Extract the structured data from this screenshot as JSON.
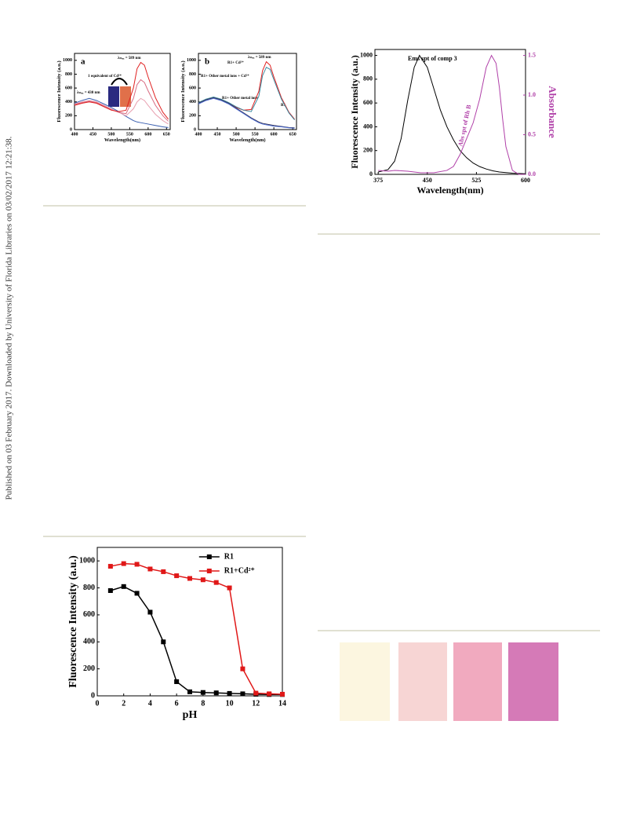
{
  "side_note": "Published on 03 February 2017. Downloaded by University of Florida Libraries on 03/02/2017 12:21:38.",
  "chart_data": [
    {
      "type": "line",
      "label": "a",
      "xlabel": "Wavelength(nm)",
      "ylabel": "Fluorescence Intensity (a.u.)",
      "annotations": [
        "λₘₐₓ = 589 nm",
        "1 equivalent of Cd²⁺",
        "λₘₐₓ = 430 nm"
      ],
      "x": [
        400,
        420,
        440,
        460,
        480,
        500,
        520,
        540,
        560,
        570,
        580,
        590,
        600,
        620,
        640,
        655
      ],
      "series": [
        {
          "color": "#3a5fb0",
          "values": [
            380,
            420,
            450,
            420,
            370,
            320,
            260,
            190,
            130,
            110,
            100,
            90,
            80,
            60,
            40,
            30
          ]
        },
        {
          "color": "#e8a0b0",
          "values": [
            370,
            400,
            420,
            400,
            350,
            300,
            250,
            200,
            300,
            400,
            450,
            420,
            350,
            220,
            130,
            80
          ]
        },
        {
          "color": "#d86a80",
          "values": [
            360,
            390,
            410,
            390,
            340,
            290,
            250,
            230,
            450,
            650,
            720,
            680,
            560,
            350,
            200,
            120
          ]
        },
        {
          "color": "#e02020",
          "values": [
            350,
            380,
            400,
            380,
            330,
            280,
            260,
            280,
            600,
            880,
            970,
            930,
            760,
            460,
            250,
            150
          ]
        }
      ],
      "xlim": [
        400,
        660
      ],
      "xticks": [
        400,
        450,
        500,
        550,
        600,
        650
      ],
      "ylim": [
        0,
        1100
      ],
      "yticks": [
        0,
        200,
        400,
        600,
        800,
        1000
      ]
    },
    {
      "type": "line",
      "label": "b",
      "xlabel": "Wavelength(nm)",
      "ylabel": "Fluorescence Intensity (a.u.)",
      "annotations": [
        "λₘₐₓ = 589 nm",
        "R1+ Cd²⁺",
        "R1+ Other metal ions + Cd²⁺",
        "R1+ Other metal ions",
        "R1"
      ],
      "x": [
        400,
        420,
        440,
        460,
        480,
        500,
        520,
        540,
        560,
        570,
        580,
        590,
        600,
        620,
        640,
        655
      ],
      "series": [
        {
          "color": "#e02020",
          "values": [
            380,
            430,
            460,
            430,
            380,
            320,
            280,
            290,
            550,
            850,
            980,
            930,
            760,
            460,
            250,
            150
          ]
        },
        {
          "color": "#3a8aa0",
          "values": [
            390,
            440,
            470,
            440,
            390,
            330,
            280,
            260,
            480,
            780,
            900,
            870,
            720,
            440,
            240,
            140
          ]
        },
        {
          "color": "#333355",
          "values": [
            380,
            430,
            460,
            430,
            380,
            310,
            240,
            170,
            110,
            90,
            80,
            70,
            60,
            45,
            30,
            25
          ]
        },
        {
          "color": "#4a6ad0",
          "values": [
            370,
            420,
            450,
            420,
            370,
            300,
            230,
            160,
            100,
            80,
            70,
            60,
            50,
            40,
            25,
            20
          ]
        }
      ],
      "xlim": [
        400,
        660
      ],
      "xticks": [
        400,
        450,
        500,
        550,
        600,
        650
      ],
      "ylim": [
        0,
        1100
      ],
      "yticks": [
        0,
        200,
        400,
        600,
        800,
        1000
      ]
    },
    {
      "type": "line",
      "xlabel": "Wavelength(nm)",
      "ylabel": "Fluorescence Intensity (a.u.)",
      "y2label": "Absorbance",
      "annotations": [
        "Ems spt of comp 3",
        "Abs spt of Rh B"
      ],
      "series": [
        {
          "color": "#000000",
          "x": [
            375,
            390,
            400,
            410,
            420,
            430,
            438,
            450,
            460,
            470,
            480,
            490,
            500,
            510,
            520,
            530,
            540,
            550,
            560,
            580,
            600
          ],
          "values": [
            20,
            40,
            110,
            300,
            620,
            900,
            1000,
            900,
            720,
            540,
            400,
            290,
            200,
            140,
            95,
            65,
            45,
            30,
            20,
            10,
            5
          ]
        },
        {
          "color": "#b040a8",
          "axis": "y2",
          "x": [
            375,
            390,
            400,
            420,
            440,
            460,
            480,
            490,
            500,
            510,
            515,
            520,
            530,
            540,
            548,
            555,
            560,
            565,
            570,
            580,
            590,
            600
          ],
          "values": [
            0.05,
            0.04,
            0.05,
            0.04,
            0.02,
            0.02,
            0.05,
            0.1,
            0.25,
            0.45,
            0.55,
            0.65,
            0.95,
            1.35,
            1.5,
            1.4,
            1.1,
            0.7,
            0.35,
            0.05,
            0.0,
            0.0
          ]
        }
      ],
      "xlim": [
        370,
        600
      ],
      "xticks": [
        375,
        450,
        525,
        600
      ],
      "ylim": [
        0,
        1050
      ],
      "yticks": [
        0,
        200,
        400,
        600,
        800,
        1000
      ],
      "y2lim": [
        0,
        1.575
      ],
      "y2ticks": [
        {
          "value": 0,
          "label": "0.0"
        },
        0.5,
        {
          "value": 1,
          "label": "1.0"
        },
        1.5
      ]
    },
    {
      "type": "line",
      "markers": true,
      "legend": "upper right",
      "xlabel": "pH",
      "ylabel": "Fluorescence Intensity (a.u.)",
      "x": [
        1,
        2,
        3,
        4,
        5,
        6,
        7,
        8,
        9,
        10,
        11,
        12,
        13,
        14
      ],
      "series": [
        {
          "name": "R1",
          "color": "#000000",
          "values": [
            780,
            810,
            760,
            620,
            400,
            105,
            30,
            25,
            22,
            18,
            15,
            12,
            10,
            10
          ]
        },
        {
          "name": "R1+Cd²⁺",
          "color": "#e01818",
          "values": [
            960,
            980,
            975,
            940,
            920,
            890,
            870,
            860,
            840,
            800,
            200,
            20,
            15,
            12
          ]
        }
      ],
      "xlim": [
        0,
        14
      ],
      "xticks": [
        0,
        2,
        4,
        6,
        8,
        10,
        12,
        14
      ],
      "ylim": [
        0,
        1100
      ],
      "yticks": [
        0,
        200,
        400,
        600,
        800,
        1000
      ]
    }
  ]
}
